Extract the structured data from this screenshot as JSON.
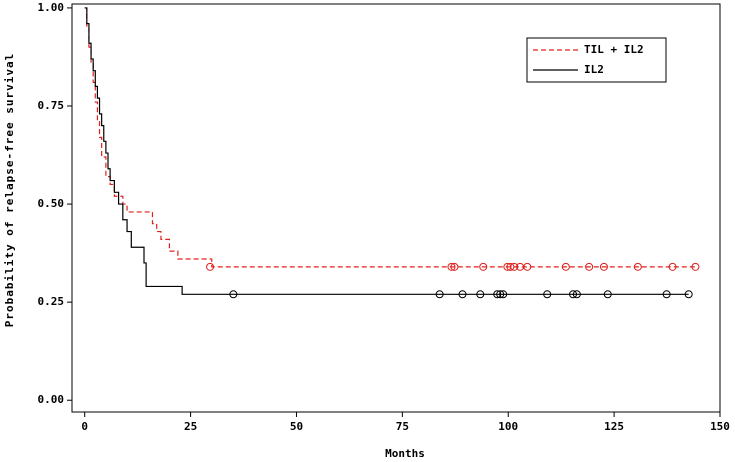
{
  "chart_data": {
    "type": "step",
    "xlabel": "Months",
    "ylabel": "Probability of relapse-free survival",
    "xlim": [
      -3,
      150
    ],
    "ylim": [
      -0.03,
      1.01
    ],
    "xticks": [
      0,
      25,
      50,
      75,
      100,
      125,
      150
    ],
    "yticks": [
      {
        "value": 0,
        "label": "0.00"
      },
      {
        "value": 0.25,
        "label": "0.25"
      },
      {
        "value": 0.5,
        "label": "0.50"
      },
      {
        "value": 0.75,
        "label": "0.75"
      },
      {
        "value": 1,
        "label": "1.00"
      }
    ],
    "legend": "upper right",
    "series": [
      {
        "name": "TIL + IL2",
        "color": "#e0201c",
        "dash": true,
        "x": [
          0,
          0.5,
          1,
          1.5,
          2,
          2.5,
          3,
          3.5,
          4,
          5,
          6,
          7,
          9,
          10,
          16,
          17,
          18,
          20,
          22,
          30,
          144.2
        ],
        "values": [
          1.0,
          0.95,
          0.9,
          0.86,
          0.81,
          0.76,
          0.71,
          0.67,
          0.62,
          0.57,
          0.55,
          0.52,
          0.5,
          0.48,
          0.45,
          0.43,
          0.41,
          0.38,
          0.36,
          0.34,
          0.34
        ],
        "censored_x": [
          29.6,
          86.6,
          87.3,
          94.1,
          99.8,
          100.5,
          101.4,
          102.8,
          104.5,
          113.6,
          119.1,
          122.6,
          130.6,
          138.8,
          144.2
        ],
        "censored_values": [
          0.34,
          0.34,
          0.34,
          0.34,
          0.34,
          0.34,
          0.34,
          0.34,
          0.34,
          0.34,
          0.34,
          0.34,
          0.34,
          0.34,
          0.34
        ]
      },
      {
        "name": "IL2",
        "color": "#000000",
        "dash": false,
        "x": [
          0,
          0.5,
          1,
          1.5,
          2,
          2.5,
          3,
          3.5,
          4,
          4.5,
          5,
          5.5,
          6,
          7,
          8,
          9,
          10,
          11,
          14,
          14.5,
          23,
          142.6
        ],
        "values": [
          1.0,
          0.96,
          0.91,
          0.87,
          0.84,
          0.8,
          0.77,
          0.73,
          0.7,
          0.66,
          0.63,
          0.59,
          0.56,
          0.53,
          0.5,
          0.46,
          0.43,
          0.39,
          0.35,
          0.29,
          0.27,
          0.27
        ],
        "censored_x": [
          35.1,
          83.8,
          89.2,
          93.4,
          97.4,
          98.1,
          98.8,
          109.2,
          115.3,
          116.2,
          123.5,
          137.4,
          142.6
        ],
        "censored_values": [
          0.27,
          0.27,
          0.27,
          0.27,
          0.27,
          0.27,
          0.27,
          0.27,
          0.27,
          0.27,
          0.27,
          0.27,
          0.27
        ]
      }
    ]
  }
}
